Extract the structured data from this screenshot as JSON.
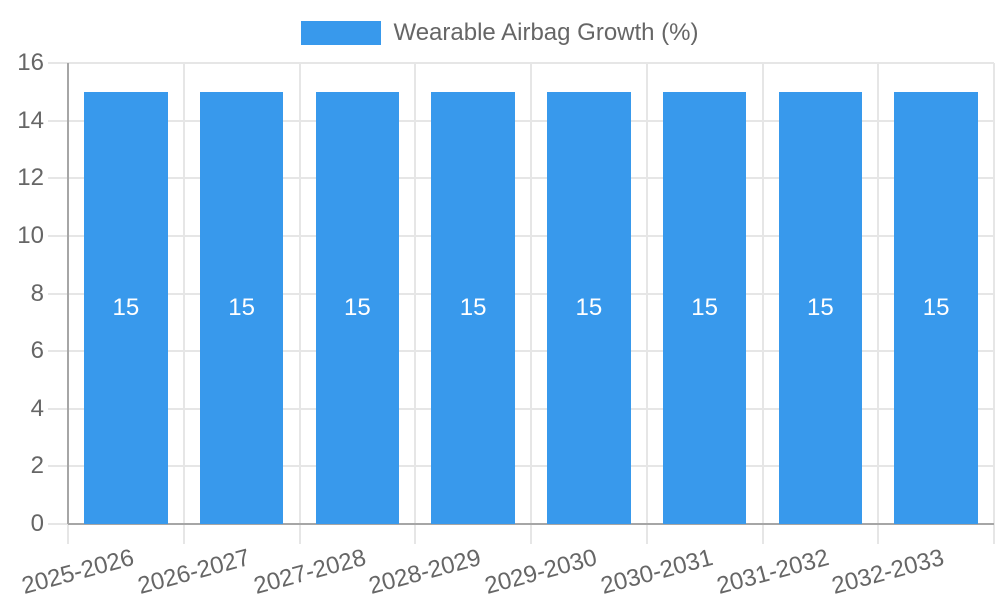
{
  "chart_data": {
    "type": "bar",
    "title": "",
    "legend": {
      "position": "top",
      "label": "Wearable Airbag Growth (%)",
      "swatch_color": "#3899ec"
    },
    "categories": [
      "2025-2026",
      "2026-2027",
      "2027-2028",
      "2028-2029",
      "2029-2030",
      "2030-2031",
      "2031-2032",
      "2032-2033"
    ],
    "series": [
      {
        "name": "Wearable Airbag Growth (%)",
        "values": [
          15,
          15,
          15,
          15,
          15,
          15,
          15,
          15
        ],
        "color": "#3899ec"
      }
    ],
    "bar_value_labels_visible": true,
    "xlabel": "",
    "ylabel": "",
    "ylim": [
      0,
      16
    ],
    "yticks": [
      0,
      2,
      4,
      6,
      8,
      10,
      12,
      14,
      16
    ],
    "grid": true,
    "x_tick_rotation_deg": -15,
    "styles": {
      "bar_color": "#3899ec",
      "grid_color": "#e6e6e6",
      "axis_color": "#a6a6a6",
      "tick_text_color": "#666666",
      "bar_label_color": "#ffffff",
      "background": "#ffffff"
    }
  }
}
